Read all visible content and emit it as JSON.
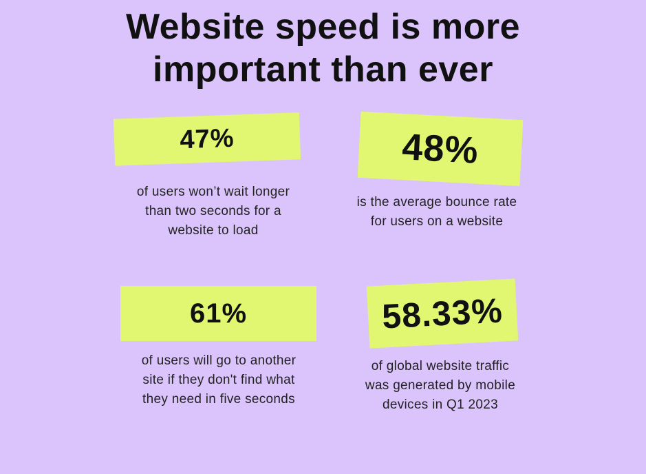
{
  "title": {
    "line1": "Website speed is more",
    "line2": "important than ever"
  },
  "stats": [
    {
      "value": "47%",
      "caption": [
        "of users won’t wait longer",
        "than two seconds for a",
        "website to load"
      ]
    },
    {
      "value": "48%",
      "caption": [
        "is the average bounce rate",
        "for users on a website"
      ]
    },
    {
      "value": "61%",
      "caption": [
        "of users will go to another",
        "site if they don't find what",
        "they need in five seconds"
      ]
    },
    {
      "value": "58.33%",
      "caption": [
        "of global website traffic",
        "was generated by mobile",
        "devices in Q1 2023"
      ]
    }
  ],
  "colors": {
    "background": "#dac4fb",
    "highlight": "#e1f771"
  }
}
